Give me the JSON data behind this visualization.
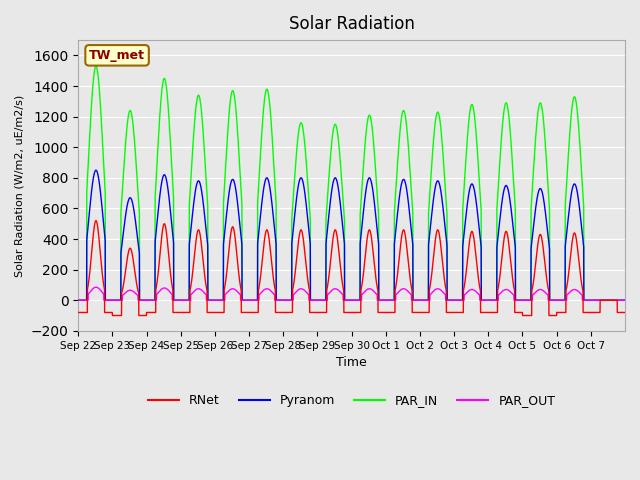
{
  "title": "Solar Radiation",
  "ylabel": "Solar Radiation (W/m2, uE/m2/s)",
  "xlabel": "Time",
  "ylim": [
    -200,
    1700
  ],
  "yticks": [
    -200,
    0,
    200,
    400,
    600,
    800,
    1000,
    1200,
    1400,
    1600
  ],
  "background_color": "#e8e8e8",
  "legend_entries": [
    "RNet",
    "Pyranom",
    "PAR_IN",
    "PAR_OUT"
  ],
  "legend_colors": [
    "red",
    "blue",
    "lime",
    "magenta"
  ],
  "station_label": "TW_met",
  "n_days": 16,
  "x_tick_labels": [
    "Sep 22",
    "Sep 23",
    "Sep 24",
    "Sep 25",
    "Sep 26",
    "Sep 27",
    "Sep 28",
    "Sep 29",
    "Sep 30",
    "Oct 1",
    "Oct 2",
    "Oct 3",
    "Oct 4",
    "Oct 5",
    "Oct 6",
    "Oct 7"
  ],
  "day_peaks": {
    "RNet": [
      520,
      340,
      500,
      460,
      480,
      460,
      460,
      460,
      460,
      460,
      460,
      450,
      450,
      430,
      440,
      0
    ],
    "Pyranom": [
      850,
      670,
      820,
      780,
      790,
      800,
      800,
      800,
      800,
      790,
      780,
      760,
      750,
      730,
      760,
      0
    ],
    "PAR_IN": [
      1530,
      1240,
      1450,
      1340,
      1370,
      1380,
      1160,
      1150,
      1210,
      1240,
      1230,
      1280,
      1290,
      1290,
      1330,
      0
    ],
    "PAR_OUT": [
      85,
      65,
      80,
      75,
      75,
      75,
      75,
      75,
      75,
      75,
      75,
      70,
      70,
      70,
      70,
      0
    ],
    "RNet_neg": [
      -80,
      -100,
      -80,
      -80,
      -80,
      -80,
      -80,
      -80,
      -80,
      -80,
      -80,
      -80,
      -80,
      -100,
      -80,
      -80
    ]
  }
}
